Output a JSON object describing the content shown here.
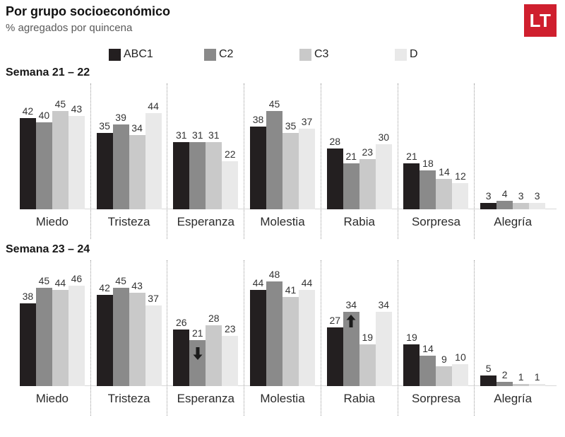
{
  "header": {
    "title": "Por grupo socioeconómico",
    "subtitle": "% agregados por quincena",
    "logo_text": "LT",
    "logo_color": "#cf1f2e"
  },
  "legend": [
    {
      "label": "ABC1",
      "color": "#231f20"
    },
    {
      "label": "C2",
      "color": "#8a8a8a"
    },
    {
      "label": "C3",
      "color": "#c9c9c9"
    },
    {
      "label": "D",
      "color": "#e9e9e9"
    }
  ],
  "chart_data": [
    {
      "type": "bar",
      "title": "Semana 21 – 22",
      "categories": [
        "Miedo",
        "Tristeza",
        "Esperanza",
        "Molestia",
        "Rabia",
        "Sorpresa",
        "Alegría"
      ],
      "series": [
        {
          "name": "ABC1",
          "values": [
            42,
            35,
            31,
            38,
            28,
            21,
            3
          ]
        },
        {
          "name": "C2",
          "values": [
            40,
            39,
            31,
            45,
            21,
            18,
            4
          ]
        },
        {
          "name": "C3",
          "values": [
            45,
            34,
            31,
            35,
            23,
            14,
            3
          ]
        },
        {
          "name": "D",
          "values": [
            43,
            44,
            22,
            37,
            30,
            12,
            3
          ]
        }
      ],
      "annotations": [],
      "ylim": [
        0,
        50
      ],
      "grid": false,
      "legend_position": "top"
    },
    {
      "type": "bar",
      "title": "Semana 23 – 24",
      "categories": [
        "Miedo",
        "Tristeza",
        "Esperanza",
        "Molestia",
        "Rabia",
        "Sorpresa",
        "Alegría"
      ],
      "series": [
        {
          "name": "ABC1",
          "values": [
            38,
            42,
            26,
            44,
            27,
            19,
            5
          ]
        },
        {
          "name": "C2",
          "values": [
            45,
            45,
            21,
            48,
            34,
            14,
            2
          ]
        },
        {
          "name": "C3",
          "values": [
            44,
            43,
            28,
            41,
            19,
            9,
            1
          ]
        },
        {
          "name": "D",
          "values": [
            46,
            37,
            23,
            44,
            34,
            10,
            1
          ]
        }
      ],
      "annotations": [
        {
          "category": "Esperanza",
          "series": "C2",
          "arrow": "down"
        },
        {
          "category": "Rabia",
          "series": "C2",
          "arrow": "up"
        }
      ],
      "ylim": [
        0,
        50
      ],
      "grid": false,
      "legend_position": "top"
    }
  ]
}
